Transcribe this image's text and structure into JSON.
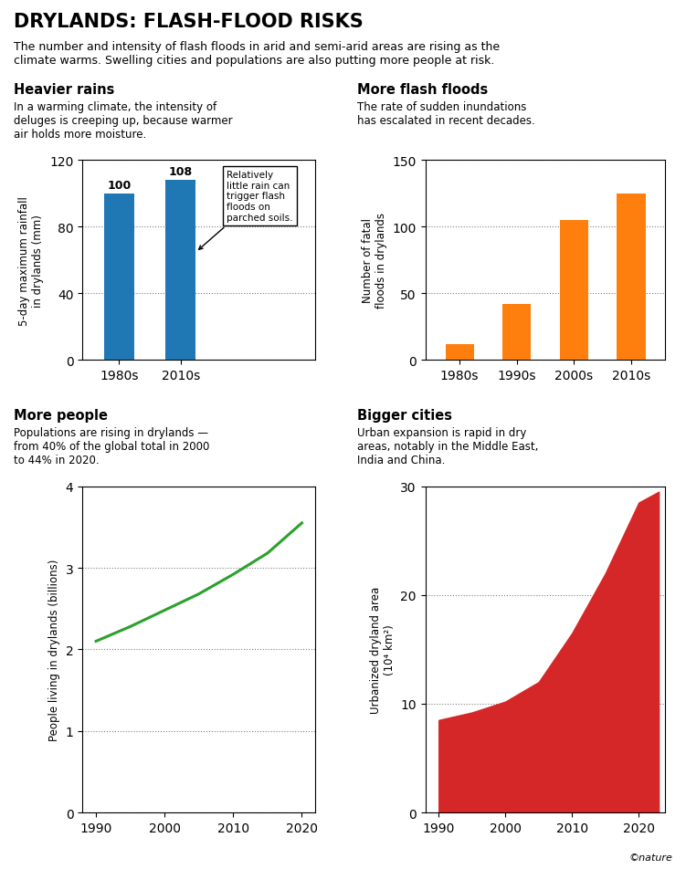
{
  "title": "DRYLANDS: FLASH-FLOOD RISKS",
  "subtitle": "The number and intensity of flash floods in arid and semi-arid areas are rising as the\nclimate warms. Swelling cities and populations are also putting more people at risk.",
  "annotations": [
    "©nature"
  ],
  "chart_data": [
    {
      "type": "bar",
      "title": "Heavier rains",
      "subtitle": "In a warming climate, the intensity of\ndeluges is creeping up, because warmer\nair holds more moisture.",
      "categories": [
        "1980s",
        "2010s"
      ],
      "values": [
        100,
        108
      ],
      "ylabel": "5-day maximum rainfall\nin drylands (mm)",
      "ylim": [
        0,
        120
      ],
      "yticks": [
        0,
        40,
        80,
        120
      ],
      "grid": true,
      "data_labels": true,
      "annotations": [
        "Relatively\nlittle rain can\ntrigger flash\nfloods on\nparched soils."
      ]
    },
    {
      "type": "bar",
      "title": "More flash floods",
      "subtitle": "The rate of sudden inundations\nhas escalated in recent decades.",
      "categories": [
        "1980s",
        "1990s",
        "2000s",
        "2010s"
      ],
      "values": [
        12,
        42,
        105,
        125
      ],
      "ylabel": "Number of fatal\nfloods in drylands",
      "ylim": [
        0,
        150
      ],
      "yticks": [
        0,
        50,
        100,
        150
      ],
      "grid": true
    },
    {
      "type": "line",
      "title": "More people",
      "subtitle": "Populations are rising in drylands —\nfrom 40% of the global total in 2000\nto 44% in 2020.",
      "x": [
        1990,
        1995,
        2000,
        2005,
        2010,
        2015,
        2020
      ],
      "values": [
        2.1,
        2.28,
        2.48,
        2.68,
        2.92,
        3.18,
        3.55
      ],
      "ylabel": "People living in drylands (billions)",
      "ylim": [
        0,
        4
      ],
      "yticks": [
        0,
        1,
        2,
        3,
        4
      ],
      "xlim": [
        1988,
        2022
      ],
      "xticks": [
        1990,
        2000,
        2010,
        2020
      ],
      "grid": true
    },
    {
      "type": "area",
      "title": "Bigger cities",
      "subtitle": "Urban expansion is rapid in dry\nareas, notably in the Middle East,\nIndia and China.",
      "x": [
        1990,
        1995,
        2000,
        2005,
        2010,
        2015,
        2020,
        2023
      ],
      "values": [
        8.5,
        9.2,
        10.2,
        12.0,
        16.5,
        22.0,
        28.5,
        29.5
      ],
      "ylabel": "Urbanized dryland area\n(10⁴ km²)",
      "ylim": [
        0,
        30
      ],
      "yticks": [
        0,
        10,
        20,
        30
      ],
      "xlim": [
        1988,
        2024
      ],
      "xticks": [
        1990,
        2000,
        2010,
        2020
      ],
      "grid": true
    }
  ]
}
